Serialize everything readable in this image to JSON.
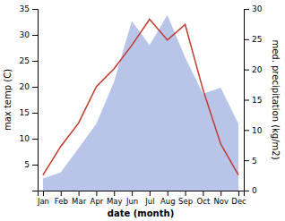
{
  "chart_data": {
    "type": "line",
    "categories": [
      "Jan",
      "Feb",
      "Mar",
      "Apr",
      "May",
      "Jun",
      "Jul",
      "Aug",
      "Sep",
      "Oct",
      "Nov",
      "Dec"
    ],
    "xlabel": "date (month)",
    "ylabel": "max temp (C)",
    "y2label": "med. precipitation (kg/m2)",
    "series": [
      {
        "type": "area",
        "axis": "y2",
        "color": "#b8c4e8",
        "values": [
          2,
          3,
          7,
          11,
          18,
          28,
          24,
          29,
          22,
          16,
          17,
          11
        ]
      },
      {
        "type": "line",
        "color": "#c0392b",
        "values": [
          3,
          8.5,
          13,
          20,
          23.5,
          28,
          33,
          29,
          32,
          19.5,
          9,
          3
        ]
      }
    ],
    "ylim": [
      0,
      35
    ],
    "yticks": [
      5,
      10,
      15,
      20,
      25,
      30,
      35
    ],
    "y2lim": [
      0,
      30
    ],
    "y2ticks": [
      0,
      5,
      10,
      15,
      20,
      25,
      30
    ],
    "grid": false
  }
}
